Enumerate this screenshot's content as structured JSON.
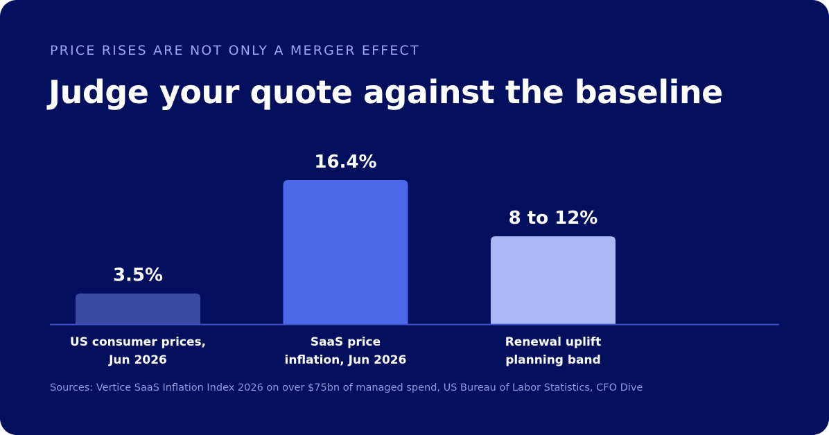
{
  "header": {
    "eyebrow": "PRICE RISES ARE NOT ONLY A MERGER EFFECT",
    "title": "Judge your quote against the baseline"
  },
  "chart_data": {
    "type": "bar",
    "categories": [
      [
        "US consumer prices,",
        "Jun 2026"
      ],
      [
        "SaaS price",
        "inflation, Jun 2026"
      ],
      [
        "Renewal uplift",
        "planning band"
      ]
    ],
    "values": [
      3.5,
      16.4,
      10
    ],
    "data_labels": [
      "3.5%",
      "16.4%",
      "8 to 12%"
    ],
    "colors": [
      "#3b4aa3",
      "#4b69e8",
      "#a8b9f5"
    ],
    "ylim": [
      0,
      16.4
    ],
    "grid": false,
    "baseline_color": "#3f51c6"
  },
  "footer": {
    "source": "Sources: Vertice SaaS Inflation Index 2026 on over $75bn of managed spend, US Bureau of Labor Statistics, CFO Dive"
  }
}
